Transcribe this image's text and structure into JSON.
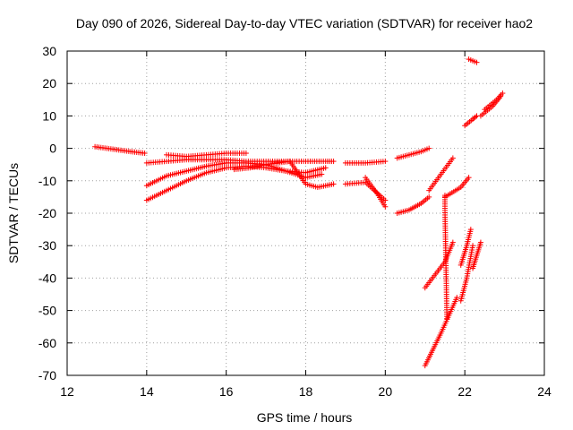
{
  "chart_data": {
    "type": "scatter",
    "title": "Day 090 of 2026, Sidereal Day-to-day VTEC variation (SDTVAR) for receiver hao2",
    "xlabel": "GPS time / hours",
    "ylabel": "SDTVAR / TECUs",
    "xlim": [
      12,
      24
    ],
    "ylim": [
      -70,
      30
    ],
    "xticks": [
      12,
      14,
      16,
      18,
      20,
      22,
      24
    ],
    "yticks": [
      30,
      20,
      10,
      0,
      -10,
      -20,
      -30,
      -40,
      -50,
      -60,
      -70
    ],
    "grid": true,
    "marker": "+",
    "color": "#ff0000",
    "series": [
      {
        "x": [
          12.7,
          13.0,
          13.3,
          13.6,
          13.95
        ],
        "y": [
          0.5,
          0,
          -0.5,
          -1,
          -1.5
        ]
      },
      {
        "x": [
          14.0,
          14.5,
          15.0,
          15.5,
          16.0,
          16.5,
          17.0,
          17.5,
          18.0,
          18.5,
          18.7
        ],
        "y": [
          -4.5,
          -4,
          -3.5,
          -3.5,
          -3.5,
          -4,
          -4,
          -4,
          -4,
          -4,
          -4
        ]
      },
      {
        "x": [
          14.5,
          15.0,
          15.5,
          16.0,
          16.5
        ],
        "y": [
          -2,
          -2.5,
          -2,
          -1.5,
          -1.5
        ]
      },
      {
        "x": [
          14.0,
          14.5,
          15.0,
          15.5,
          16.0,
          16.5,
          17.0
        ],
        "y": [
          -11.5,
          -8.5,
          -7,
          -5.5,
          -4.5,
          -4.5,
          -5
        ]
      },
      {
        "x": [
          14.0,
          14.5,
          15.0,
          15.5,
          16.0,
          16.5,
          17.0,
          17.5,
          18.0,
          18.5
        ],
        "y": [
          -16,
          -13,
          -10,
          -7.5,
          -6,
          -5.5,
          -6,
          -7,
          -7.5,
          -6
        ]
      },
      {
        "x": [
          16.2,
          16.6,
          17.0,
          17.5,
          18.0,
          18.4
        ],
        "y": [
          -6.5,
          -6,
          -5,
          -7,
          -9,
          -8
        ]
      },
      {
        "x": [
          17.0,
          17.3,
          17.6,
          18.0,
          18.3,
          18.7
        ],
        "y": [
          -5,
          -4.5,
          -4,
          -11,
          -12,
          -11
        ]
      },
      {
        "x": [
          19.0,
          19.5,
          20.0
        ],
        "y": [
          -4.5,
          -4.5,
          -4
        ]
      },
      {
        "x": [
          19.0,
          19.5,
          20.0
        ],
        "y": [
          -11,
          -10.5,
          -16
        ]
      },
      {
        "x": [
          19.5,
          19.8,
          20.0
        ],
        "y": [
          -9,
          -14,
          -18
        ]
      },
      {
        "x": [
          20.3,
          20.6,
          20.9,
          21.1
        ],
        "y": [
          -3,
          -2,
          -1,
          0
        ]
      },
      {
        "x": [
          20.3,
          20.6,
          20.9,
          21.1
        ],
        "y": [
          -20,
          -19,
          -17,
          -15
        ]
      },
      {
        "x": [
          21.1,
          21.4,
          21.7
        ],
        "y": [
          -13,
          -8,
          -3
        ]
      },
      {
        "x": [
          21.0,
          21.5,
          21.7
        ],
        "y": [
          -43,
          -35,
          -29
        ]
      },
      {
        "x": [
          21.0,
          21.4,
          21.8
        ],
        "y": [
          -67,
          -57,
          -46
        ]
      },
      {
        "x": [
          21.5,
          21.9,
          22.1
        ],
        "y": [
          -15,
          -12,
          -9
        ]
      },
      {
        "x": [
          21.9,
          22.05,
          22.2
        ],
        "y": [
          -47,
          -40,
          -30
        ]
      },
      {
        "x": [
          21.9,
          22.05,
          22.15
        ],
        "y": [
          -36,
          -30,
          -25
        ]
      },
      {
        "x": [
          22.2,
          22.3,
          22.4
        ],
        "y": [
          -37,
          -33,
          -29
        ]
      },
      {
        "x": [
          22.0,
          22.2,
          22.3
        ],
        "y": [
          7,
          9,
          10
        ]
      },
      {
        "x": [
          22.4,
          22.7,
          22.9
        ],
        "y": [
          10,
          13,
          16
        ]
      },
      {
        "x": [
          22.5,
          22.8,
          22.95
        ],
        "y": [
          12,
          15,
          17
        ]
      },
      {
        "x": [
          22.1,
          22.2,
          22.3
        ],
        "y": [
          27.5,
          27,
          26.5
        ]
      },
      {
        "x": [
          21.5,
          21.5,
          21.55
        ],
        "y": [
          -14.5,
          -18.5,
          -52.5
        ]
      }
    ]
  }
}
